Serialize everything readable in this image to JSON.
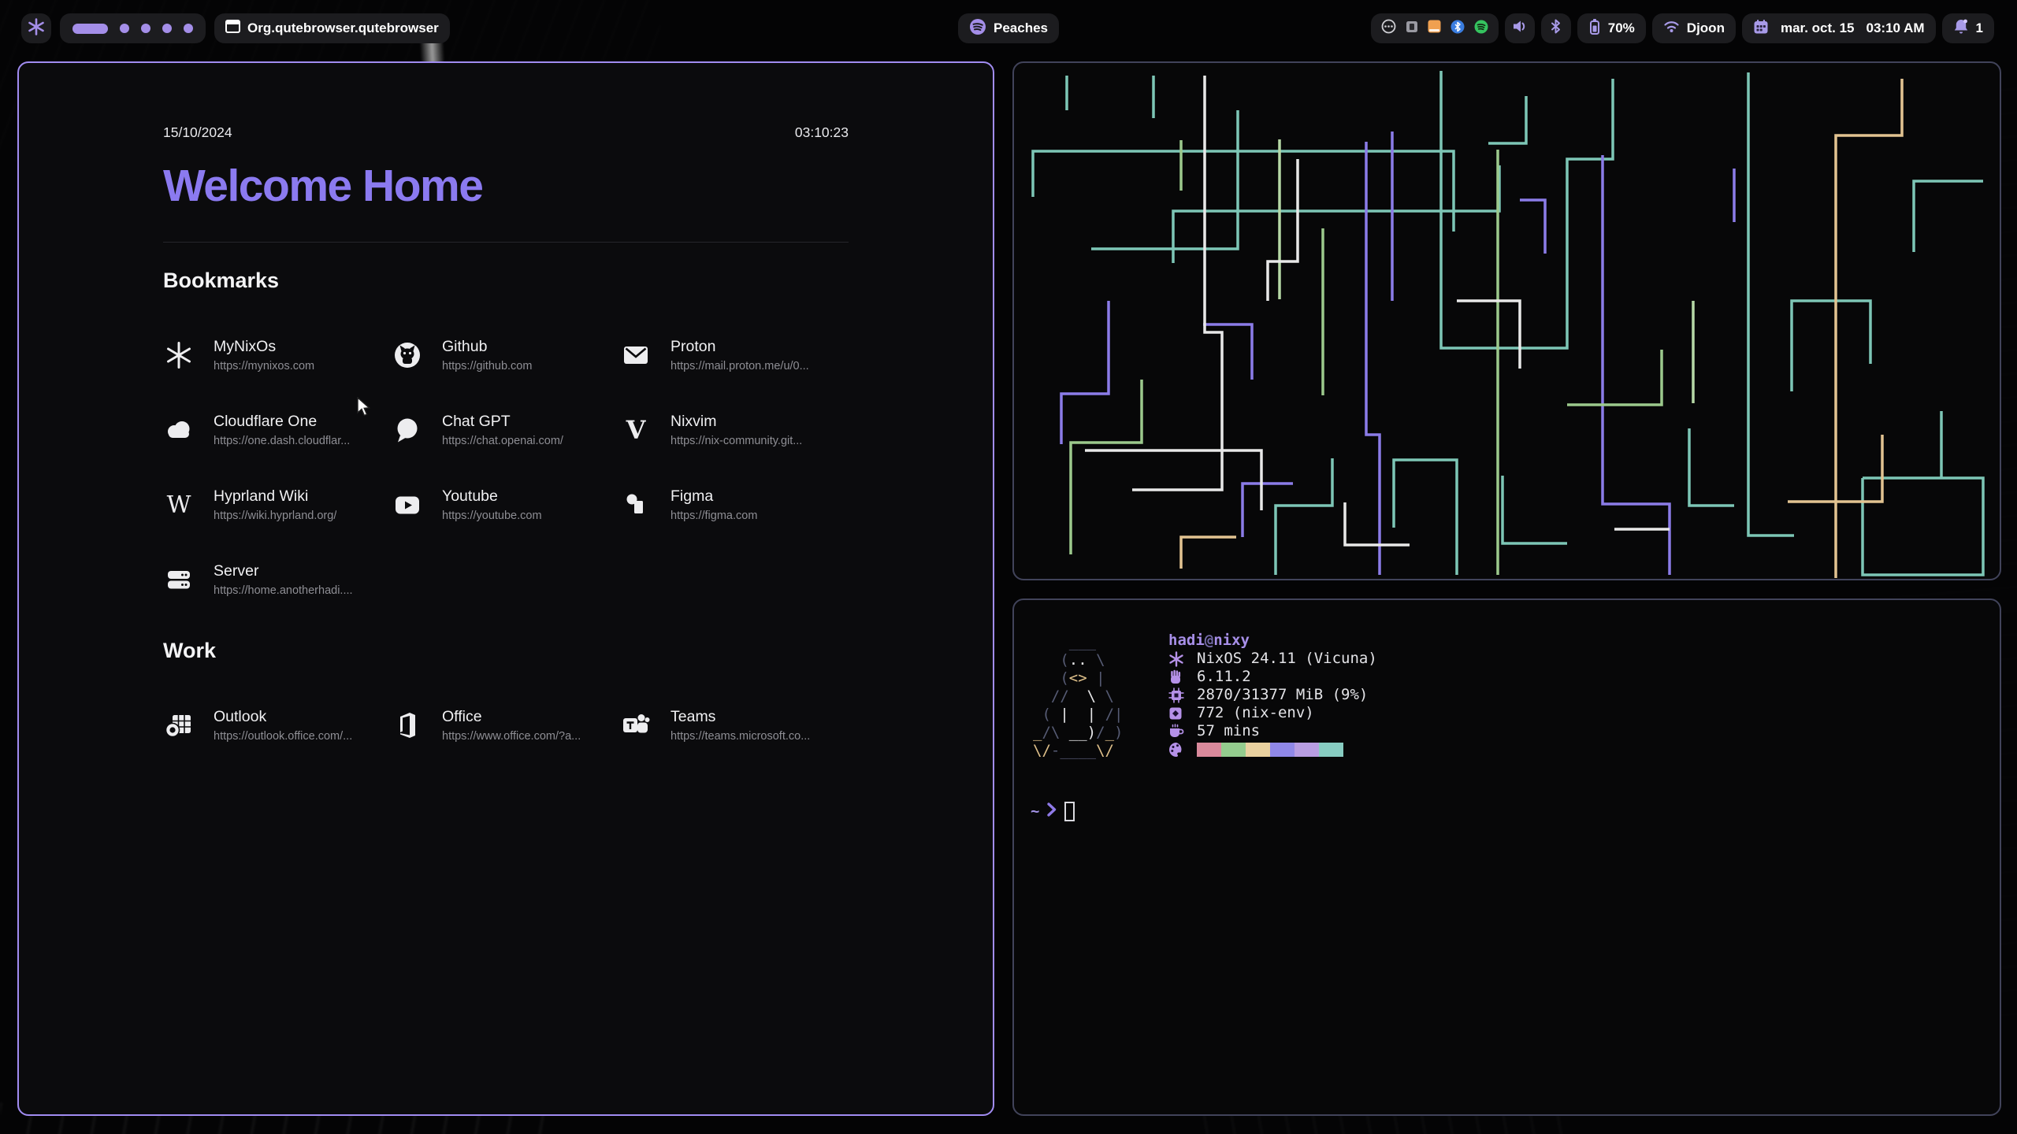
{
  "colors": {
    "accent_purple": "#a48ee8",
    "focused_border": "#a18cf2",
    "unfocused_border": "#41435a",
    "title_purple": "#8b7af0",
    "terminal_gray": "#565b74",
    "terminal_yellow": "#dfc08a"
  },
  "topbar": {
    "launcher": {
      "icon": "nix-snowflake"
    },
    "workspaces": {
      "total": 5,
      "active_index": 0
    },
    "window_title": {
      "icon": "window",
      "label": "Org.qutebrowser.qutebrowser"
    },
    "media": {
      "icon": "spotify",
      "label": "Peaches"
    },
    "tray_icons": [
      "disc",
      "widget",
      "folder-orange",
      "bluetooth",
      "spotify"
    ],
    "volume": {
      "icon": "speaker"
    },
    "bluetooth": {
      "icon": "bluetooth"
    },
    "battery": {
      "icon": "battery",
      "label": "70%"
    },
    "network": {
      "icon": "wifi",
      "label": "Djoon"
    },
    "clock": {
      "icon": "calendar",
      "date": "mar. oct. 15",
      "time": "03:10 AM"
    },
    "notifications": {
      "icon": "bell",
      "label": "1"
    }
  },
  "browser": {
    "header": {
      "date": "15/10/2024",
      "time": "03:10:23"
    },
    "title": "Welcome Home",
    "sections": [
      {
        "heading": "Bookmarks",
        "items": [
          {
            "name": "MyNixOs",
            "url": "https://mynixos.com",
            "icon": "nix-snowflake"
          },
          {
            "name": "Github",
            "url": "https://github.com",
            "icon": "github"
          },
          {
            "name": "Proton",
            "url": "https://mail.proton.me/u/0...",
            "icon": "envelope"
          },
          {
            "name": "Cloudflare One",
            "url": "https://one.dash.cloudflar...",
            "icon": "cloud"
          },
          {
            "name": "Chat GPT",
            "url": "https://chat.openai.com/",
            "icon": "chat-bubble"
          },
          {
            "name": "Nixvim",
            "url": "https://nix-community.git...",
            "icon": "vim-v"
          },
          {
            "name": "Hyprland Wiki",
            "url": "https://wiki.hyprland.org/",
            "icon": "wikipedia-w"
          },
          {
            "name": "Youtube",
            "url": "https://youtube.com",
            "icon": "youtube-play"
          },
          {
            "name": "Figma",
            "url": "https://figma.com",
            "icon": "figma"
          },
          {
            "name": "Server",
            "url": "https://home.anotherhadi....",
            "icon": "server-stack"
          }
        ]
      },
      {
        "heading": "Work",
        "items": [
          {
            "name": "Outlook",
            "url": "https://outlook.office.com/...",
            "icon": "outlook"
          },
          {
            "name": "Office",
            "url": "https://www.office.com/?a...",
            "icon": "office"
          },
          {
            "name": "Teams",
            "url": "https://teams.microsoft.co...",
            "icon": "teams"
          }
        ]
      }
    ]
  },
  "fetch": {
    "user": "hadi",
    "at": "@",
    "host": "nixy",
    "rows": [
      {
        "icon": "nix-snowflake",
        "text": "NixOS 24.11 (Vicuna)"
      },
      {
        "icon": "hand",
        "text": "6.11.2"
      },
      {
        "icon": "chip",
        "text": "2870/31377 MiB (9%)"
      },
      {
        "icon": "package",
        "text": "772 (nix-env)"
      },
      {
        "icon": "coffee-cup",
        "text": "57 mins"
      }
    ],
    "palette": [
      "#d9899b",
      "#94cc8e",
      "#e9d1a0",
      "#9088e8",
      "#b89de2",
      "#87ccc1"
    ],
    "prompt": {
      "cwd": "~",
      "symbol": "chevron-right"
    },
    "ascii_art": [
      [
        [
          "g",
          "    ___"
        ]
      ],
      [
        [
          "g",
          "   ("
        ],
        [
          "w",
          ".."
        ],
        [
          "g",
          " \\"
        ]
      ],
      [
        [
          "g",
          "   ("
        ],
        [
          "y",
          "<>"
        ],
        [
          "g",
          " |"
        ]
      ],
      [
        [
          "g",
          "  //  "
        ],
        [
          "w",
          "\\"
        ],
        [
          "g",
          " \\"
        ]
      ],
      [
        [
          "g",
          " ( "
        ],
        [
          "w",
          "|"
        ],
        [
          "g",
          "  "
        ],
        [
          "w",
          "|"
        ],
        [
          "g",
          " /|"
        ]
      ],
      [
        [
          "y",
          "_"
        ],
        [
          "g",
          "/\\ "
        ],
        [
          "w",
          "__)"
        ],
        [
          "g",
          "/"
        ],
        [
          "y",
          "_"
        ],
        [
          "g",
          ")"
        ]
      ],
      [
        [
          "y",
          "\\/"
        ],
        [
          "g",
          "-____"
        ],
        [
          "y",
          "\\/"
        ]
      ]
    ]
  },
  "pipes_art": {
    "colors": {
      "t": "#7dc6b6",
      "p": "#8b7ce8",
      "g": "#9cc98c",
      "l": "#b6d8a6",
      "y": "#e2c391",
      "w": "#e8e8e8"
    },
    "lines": [
      {
        "c": "t",
        "p": "22,168 22,110 556,110 556,212"
      },
      {
        "c": "t",
        "p": "200,252 200,186 614,186 614,128"
      },
      {
        "c": "t",
        "p": "96,234 282,234 282,58"
      },
      {
        "c": "t",
        "p": "540,8 540,360 700,360 700,120 758,120 758,18"
      },
      {
        "c": "t",
        "p": "930,10 930,598 988,598"
      },
      {
        "c": "t",
        "p": "65,14 65,58"
      },
      {
        "c": "t",
        "p": "175,14 175,68"
      },
      {
        "c": "t",
        "p": "480,588 480,502 560,502 560,648"
      },
      {
        "c": "t",
        "p": "618,522 618,608 700,608"
      },
      {
        "c": "t",
        "p": "855,462 855,560 912,560"
      },
      {
        "c": "t",
        "p": "985,415 985,300 1085,300 1085,380"
      },
      {
        "c": "t",
        "p": "1140,238 1140,148 1228,148"
      },
      {
        "c": "t",
        "p": "1075,525 1228,525 1228,648 1075,648 1075,525"
      },
      {
        "c": "t",
        "p": "1175,440 1175,525"
      },
      {
        "c": "t",
        "p": "330,648 330,560 402,560 402,500"
      },
      {
        "c": "t",
        "p": "648,40 648,100 600,100"
      },
      {
        "c": "p",
        "p": "445,98 445,470 462,470 462,648"
      },
      {
        "c": "p",
        "p": "478,85 478,300"
      },
      {
        "c": "p",
        "p": "745,115 745,558 830,558 830,648"
      },
      {
        "c": "p",
        "p": "118,300 118,418 58,418 58,482"
      },
      {
        "c": "p",
        "p": "288,600 288,532 352,532"
      },
      {
        "c": "p",
        "p": "672,240 672,172 640,172"
      },
      {
        "c": "p",
        "p": "912,200 912,132"
      },
      {
        "c": "p",
        "p": "238,330 300,330 300,400"
      },
      {
        "c": "g",
        "p": "612,108 612,648"
      },
      {
        "c": "g",
        "p": "70,622 70,480 160,480 160,400"
      },
      {
        "c": "g",
        "p": "390,208 390,420"
      },
      {
        "c": "g",
        "p": "700,432 820,432 820,362"
      },
      {
        "c": "g",
        "p": "210,96 210,160"
      },
      {
        "c": "l",
        "p": "335,95 335,298"
      },
      {
        "c": "l",
        "p": "860,300 860,430"
      },
      {
        "c": "y",
        "p": "1125,18 1125,90 1041,90 1041,652"
      },
      {
        "c": "y",
        "p": "980,555 1100,555 1100,470"
      },
      {
        "c": "y",
        "p": "210,640 210,600 280,600"
      },
      {
        "c": "w",
        "p": "240,14 240,340 262,340 262,540 148,540"
      },
      {
        "c": "w",
        "p": "88,490 312,490 312,566"
      },
      {
        "c": "w",
        "p": "418,556 418,610 500,610"
      },
      {
        "c": "w",
        "p": "560,300 640,300 640,386"
      },
      {
        "c": "w",
        "p": "760,590 830,590"
      },
      {
        "c": "w",
        "p": "358,120 358,250 320,250 320,300"
      }
    ]
  }
}
